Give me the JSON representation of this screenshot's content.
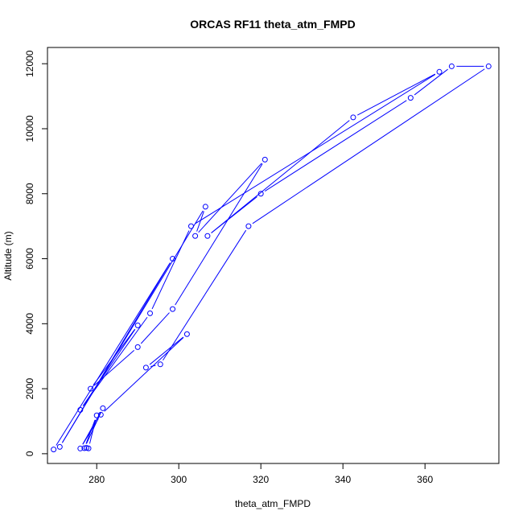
{
  "chart_data": {
    "type": "line",
    "title": "ORCAS RF11 theta_atm_FMPD",
    "xlabel": "theta_atm_FMPD",
    "ylabel": "Altitude (m)",
    "xlim": [
      268,
      378
    ],
    "ylim": [
      -300,
      12500
    ],
    "x_ticks": [
      280,
      300,
      320,
      340,
      360
    ],
    "x_tick_labels": [
      "280",
      "300",
      "320",
      "340",
      "360"
    ],
    "y_ticks": [
      0,
      2000,
      4000,
      6000,
      8000,
      10000,
      12000
    ],
    "y_tick_labels": [
      "0",
      "2000",
      "4000",
      "6000",
      "8000",
      "10000",
      "12000"
    ],
    "grid": false,
    "series_color": "#0000ff",
    "series": [
      {
        "name": "",
        "markers": "open-circle",
        "points": [
          {
            "x": 269.5,
            "y": 130
          },
          {
            "x": 298.5,
            "y": 6000
          },
          {
            "x": 271.0,
            "y": 210
          },
          {
            "x": 306.5,
            "y": 7600
          },
          {
            "x": 304.0,
            "y": 6700
          },
          {
            "x": 321.0,
            "y": 9050
          },
          {
            "x": 298.5,
            "y": 4450
          },
          {
            "x": 290.0,
            "y": 3280
          },
          {
            "x": 278.5,
            "y": 2000
          },
          {
            "x": 290.0,
            "y": 3950
          },
          {
            "x": 276.0,
            "y": 1350
          },
          {
            "x": 293.0,
            "y": 4320
          },
          {
            "x": 303.0,
            "y": 7000
          },
          {
            "x": 363.5,
            "y": 11750
          },
          {
            "x": 342.5,
            "y": 10350
          },
          {
            "x": 307.0,
            "y": 6700
          },
          {
            "x": 320.0,
            "y": 8000
          },
          {
            "x": 356.5,
            "y": 10950
          },
          {
            "x": 366.5,
            "y": 11920
          },
          {
            "x": 375.5,
            "y": 11920
          },
          {
            "x": 317.0,
            "y": 7000
          },
          {
            "x": 295.5,
            "y": 2750
          },
          {
            "x": 292.0,
            "y": 2650
          },
          {
            "x": 302.0,
            "y": 3680
          },
          {
            "x": 281.0,
            "y": 1200
          },
          {
            "x": 276.0,
            "y": 160
          },
          {
            "x": 281.5,
            "y": 1400
          },
          {
            "x": 277.0,
            "y": 170
          },
          {
            "x": 280.0,
            "y": 1180
          },
          {
            "x": 278.0,
            "y": 165
          },
          {
            "x": 277.5,
            "y": 180
          }
        ]
      }
    ]
  }
}
